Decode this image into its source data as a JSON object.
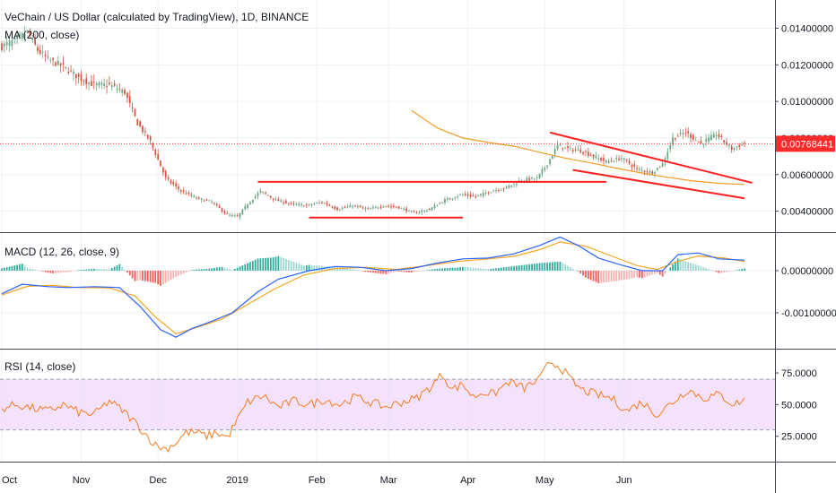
{
  "chart_data": {
    "type": "candlestick",
    "title": "VeChain / US Dollar (calculated by TradingView), 1D, BINANCE",
    "subtitle": "MA (200, close)",
    "colors": {
      "up": "#6ba583",
      "down": "#d75442",
      "ma": "#f39c26",
      "trendline": "#ff1f1f",
      "last_price": "#ff2a2a",
      "macd_line": "#2962ff",
      "signal_line": "#f5a623",
      "hist_up": "#26a69a",
      "hist_down": "#ef5350",
      "rsi_line": "#f57c1f",
      "rsi_band": "#efd6fb",
      "grid": "#eef0f4"
    },
    "x_labels": [
      "Oct",
      "Nov",
      "Dec",
      "2019",
      "Feb",
      "Mar",
      "Apr",
      "May",
      "Jun"
    ],
    "price_panel": {
      "ylim": [
        0.0029,
        0.0153
      ],
      "ticks": [
        0.004,
        0.006,
        0.008,
        0.01,
        0.012,
        0.014
      ],
      "tick_labels": [
        "0.00400000",
        "0.00600000",
        "0.00800000",
        "0.01000000",
        "0.01200000",
        "0.01400000"
      ],
      "last_price": 0.00768441,
      "last_price_label": "0.00768441",
      "anchors": [
        [
          0,
          0.013
        ],
        [
          6,
          0.0134
        ],
        [
          10,
          0.0138
        ],
        [
          14,
          0.0128
        ],
        [
          18,
          0.0123
        ],
        [
          24,
          0.0119
        ],
        [
          30,
          0.0113
        ],
        [
          36,
          0.0109
        ],
        [
          42,
          0.0109
        ],
        [
          48,
          0.0105
        ],
        [
          53,
          0.0088
        ],
        [
          58,
          0.0078
        ],
        [
          64,
          0.0058
        ],
        [
          70,
          0.0051
        ],
        [
          76,
          0.0047
        ],
        [
          82,
          0.0045
        ],
        [
          88,
          0.0038
        ],
        [
          92,
          0.0037
        ],
        [
          96,
          0.0044
        ],
        [
          101,
          0.0051
        ],
        [
          107,
          0.0046
        ],
        [
          113,
          0.0044
        ],
        [
          119,
          0.0043
        ],
        [
          125,
          0.0045
        ],
        [
          131,
          0.0041
        ],
        [
          137,
          0.0043
        ],
        [
          143,
          0.0041
        ],
        [
          149,
          0.0043
        ],
        [
          155,
          0.0042
        ],
        [
          161,
          0.0039
        ],
        [
          167,
          0.0041
        ],
        [
          173,
          0.0046
        ],
        [
          179,
          0.0049
        ],
        [
          185,
          0.0048
        ],
        [
          191,
          0.0051
        ],
        [
          197,
          0.0053
        ],
        [
          203,
          0.0057
        ],
        [
          209,
          0.0058
        ],
        [
          213,
          0.0066
        ],
        [
          217,
          0.0076
        ],
        [
          221,
          0.0074
        ],
        [
          226,
          0.0073
        ],
        [
          231,
          0.007
        ],
        [
          236,
          0.0067
        ],
        [
          242,
          0.0069
        ],
        [
          248,
          0.0063
        ],
        [
          254,
          0.0061
        ],
        [
          258,
          0.0066
        ],
        [
          262,
          0.008
        ],
        [
          267,
          0.0083
        ],
        [
          273,
          0.0077
        ],
        [
          279,
          0.0082
        ],
        [
          285,
          0.0074
        ],
        [
          290,
          0.0077
        ]
      ],
      "ma200": [
        [
          160,
          0.0095
        ],
        [
          170,
          0.00855
        ],
        [
          180,
          0.008
        ],
        [
          190,
          0.00775
        ],
        [
          200,
          0.00755
        ],
        [
          210,
          0.00722
        ],
        [
          220,
          0.0069
        ],
        [
          230,
          0.00664
        ],
        [
          240,
          0.00635
        ],
        [
          250,
          0.00608
        ],
        [
          260,
          0.00585
        ],
        [
          270,
          0.00565
        ],
        [
          280,
          0.00552
        ],
        [
          290,
          0.00546
        ]
      ],
      "trendlines": [
        {
          "from": [
            100,
            0.0056
          ],
          "to": [
            236,
            0.0056
          ]
        },
        {
          "from": [
            120,
            0.00365
          ],
          "to": [
            180,
            0.00365
          ]
        },
        {
          "from": [
            214,
            0.0083
          ],
          "to": [
            293,
            0.00555
          ]
        },
        {
          "from": [
            223,
            0.00625
          ],
          "to": [
            290,
            0.0047
          ]
        }
      ]
    },
    "macd_panel": {
      "label": "MACD (12, 26, close, 9)",
      "ylim": [
        -0.00183,
        0.00085
      ],
      "ticks": [
        0.0,
        -0.001
      ],
      "tick_labels": [
        "0.00000000",
        "-0.00100000"
      ],
      "macd": [
        [
          0,
          -0.00055
        ],
        [
          8,
          -0.00032
        ],
        [
          18,
          -0.00038
        ],
        [
          26,
          -0.0004
        ],
        [
          36,
          -0.00038
        ],
        [
          46,
          -0.0004
        ],
        [
          54,
          -0.00085
        ],
        [
          62,
          -0.0014
        ],
        [
          68,
          -0.00158
        ],
        [
          74,
          -0.00138
        ],
        [
          82,
          -0.0012
        ],
        [
          90,
          -0.001
        ],
        [
          100,
          -0.0005
        ],
        [
          108,
          -0.0002
        ],
        [
          120,
          0.0
        ],
        [
          130,
          0.0001
        ],
        [
          140,
          8e-05
        ],
        [
          150,
          0.0
        ],
        [
          160,
          5e-05
        ],
        [
          170,
          0.00018
        ],
        [
          180,
          0.00028
        ],
        [
          190,
          0.0003
        ],
        [
          200,
          0.0004
        ],
        [
          210,
          0.0006
        ],
        [
          218,
          0.0008
        ],
        [
          225,
          0.0006
        ],
        [
          233,
          0.0003
        ],
        [
          241,
          0.00015
        ],
        [
          250,
          0.0
        ],
        [
          258,
          0.0
        ],
        [
          264,
          0.00038
        ],
        [
          272,
          0.00042
        ],
        [
          280,
          0.00028
        ],
        [
          290,
          0.00025
        ]
      ],
      "signal": [
        [
          0,
          -0.00058
        ],
        [
          10,
          -0.00037
        ],
        [
          20,
          -0.00035
        ],
        [
          30,
          -0.0004
        ],
        [
          42,
          -0.00041
        ],
        [
          52,
          -0.0006
        ],
        [
          60,
          -0.0011
        ],
        [
          68,
          -0.0015
        ],
        [
          76,
          -0.00135
        ],
        [
          86,
          -0.00115
        ],
        [
          96,
          -0.0008
        ],
        [
          106,
          -0.00045
        ],
        [
          118,
          -0.0001
        ],
        [
          130,
          5e-05
        ],
        [
          142,
          8e-05
        ],
        [
          154,
          3e-05
        ],
        [
          166,
          0.00012
        ],
        [
          178,
          0.00022
        ],
        [
          190,
          0.00028
        ],
        [
          200,
          0.00034
        ],
        [
          210,
          0.0005
        ],
        [
          218,
          0.00068
        ],
        [
          228,
          0.00058
        ],
        [
          238,
          0.00035
        ],
        [
          248,
          0.00012
        ],
        [
          256,
          3e-05
        ],
        [
          264,
          0.00022
        ],
        [
          272,
          0.00035
        ],
        [
          282,
          0.0003
        ],
        [
          290,
          0.00022
        ]
      ]
    },
    "rsi_panel": {
      "label": "RSI (14, close)",
      "ylim": [
        5,
        92
      ],
      "band": [
        30,
        70
      ],
      "ticks": [
        75,
        50,
        25
      ],
      "tick_labels": [
        "75.0000",
        "50.0000",
        "25.0000"
      ],
      "anchors": [
        [
          0,
          47
        ],
        [
          6,
          50
        ],
        [
          12,
          47
        ],
        [
          18,
          45
        ],
        [
          24,
          50
        ],
        [
          30,
          44
        ],
        [
          36,
          42
        ],
        [
          42,
          53
        ],
        [
          48,
          44
        ],
        [
          52,
          36
        ],
        [
          56,
          27
        ],
        [
          60,
          18
        ],
        [
          64,
          15
        ],
        [
          68,
          20
        ],
        [
          72,
          28
        ],
        [
          76,
          28
        ],
        [
          80,
          25
        ],
        [
          84,
          28
        ],
        [
          88,
          24
        ],
        [
          92,
          38
        ],
        [
          96,
          52
        ],
        [
          102,
          57
        ],
        [
          108,
          48
        ],
        [
          114,
          53
        ],
        [
          120,
          50
        ],
        [
          126,
          54
        ],
        [
          132,
          50
        ],
        [
          138,
          56
        ],
        [
          144,
          52
        ],
        [
          150,
          48
        ],
        [
          156,
          52
        ],
        [
          162,
          55
        ],
        [
          168,
          65
        ],
        [
          172,
          74
        ],
        [
          176,
          62
        ],
        [
          180,
          66
        ],
        [
          184,
          56
        ],
        [
          188,
          60
        ],
        [
          192,
          58
        ],
        [
          198,
          68
        ],
        [
          204,
          63
        ],
        [
          210,
          70
        ],
        [
          214,
          84
        ],
        [
          218,
          80
        ],
        [
          222,
          70
        ],
        [
          226,
          62
        ],
        [
          232,
          58
        ],
        [
          238,
          55
        ],
        [
          244,
          45
        ],
        [
          250,
          52
        ],
        [
          256,
          42
        ],
        [
          262,
          52
        ],
        [
          268,
          62
        ],
        [
          274,
          55
        ],
        [
          280,
          58
        ],
        [
          286,
          50
        ],
        [
          290,
          54
        ]
      ]
    }
  }
}
